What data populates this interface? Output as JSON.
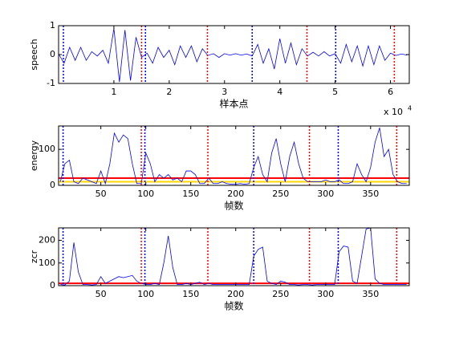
{
  "chart_data": [
    {
      "type": "line",
      "ylabel": "speech",
      "xlabel": "样本点",
      "x_exponent_base": "x 10",
      "x_exponent": "4",
      "x": [
        0,
        1000,
        2000,
        3000,
        4000,
        5000,
        6000,
        7000,
        8000,
        9000,
        10000,
        11000,
        12000,
        13000,
        14000,
        15000,
        16000,
        17000,
        18000,
        19000,
        20000,
        21000,
        22000,
        23000,
        24000,
        25000,
        26000,
        27000,
        28000,
        29000,
        30000,
        31000,
        32000,
        33000,
        34000,
        35000,
        36000,
        37000,
        38000,
        39000,
        40000,
        41000,
        42000,
        43000,
        44000,
        45000,
        46000,
        47000,
        48000,
        49000,
        50000,
        51000,
        52000,
        53000,
        54000,
        55000,
        56000,
        57000,
        58000,
        59000,
        60000,
        61000,
        62000,
        63000
      ],
      "values": [
        0.02,
        -0.3,
        0.25,
        -0.2,
        0.25,
        -0.2,
        0.1,
        -0.05,
        0.15,
        -0.3,
        0.9,
        -0.95,
        0.85,
        -0.9,
        0.6,
        -0.1,
        0.05,
        -0.3,
        0.25,
        -0.1,
        0.15,
        -0.35,
        0.3,
        -0.1,
        0.3,
        -0.25,
        0.2,
        -0.03,
        0.03,
        -0.1,
        0.03,
        -0.02,
        0.03,
        -0.02,
        0.02,
        -0.05,
        0.35,
        -0.3,
        0.2,
        -0.5,
        0.55,
        -0.3,
        0.4,
        -0.35,
        0.2,
        -0.05,
        0.08,
        -0.05,
        0.1,
        -0.05,
        0.03,
        -0.3,
        0.35,
        -0.25,
        0.3,
        -0.4,
        0.3,
        -0.35,
        0.3,
        -0.2,
        0.05,
        -0.03,
        0.02,
        -0.02
      ],
      "color": "#0000ff",
      "xlim": [
        0,
        63400
      ],
      "ylim": [
        -1,
        1
      ],
      "yticks": [
        -1,
        0,
        1
      ],
      "xticks": [
        {
          "value": 10000,
          "label": "1"
        },
        {
          "value": 20000,
          "label": "2"
        },
        {
          "value": 30000,
          "label": "3"
        },
        {
          "value": 40000,
          "label": "4"
        },
        {
          "value": 50000,
          "label": "5"
        },
        {
          "value": 60000,
          "label": "6"
        }
      ],
      "vlines": [
        {
          "value": 870,
          "color": "#0000ff"
        },
        {
          "value": 15000,
          "color": "#ff0000"
        },
        {
          "value": 15700,
          "color": "#0000ff"
        },
        {
          "value": 26900,
          "color": "#ff0000"
        },
        {
          "value": 35000,
          "color": "#0000ff"
        },
        {
          "value": 44900,
          "color": "#ff0000"
        },
        {
          "value": 50100,
          "color": "#0000ff"
        },
        {
          "value": 60700,
          "color": "#ff0000"
        }
      ]
    },
    {
      "type": "line",
      "ylabel": "energy",
      "xlabel": "帧数",
      "x": [
        5,
        10,
        15,
        20,
        25,
        30,
        35,
        40,
        45,
        50,
        55,
        60,
        65,
        70,
        75,
        80,
        85,
        90,
        95,
        100,
        105,
        110,
        115,
        120,
        125,
        130,
        135,
        140,
        145,
        150,
        155,
        160,
        165,
        170,
        175,
        180,
        185,
        190,
        195,
        200,
        205,
        210,
        215,
        220,
        225,
        230,
        235,
        240,
        245,
        250,
        255,
        260,
        265,
        270,
        275,
        280,
        285,
        290,
        295,
        300,
        305,
        310,
        315,
        320,
        325,
        330,
        335,
        340,
        345,
        350,
        355,
        360,
        365,
        370,
        375,
        380,
        385,
        390
      ],
      "values": [
        10,
        60,
        70,
        10,
        5,
        20,
        15,
        10,
        5,
        40,
        5,
        60,
        145,
        120,
        140,
        130,
        60,
        5,
        5,
        90,
        60,
        10,
        30,
        20,
        30,
        15,
        20,
        10,
        40,
        40,
        30,
        5,
        5,
        20,
        5,
        5,
        10,
        5,
        3,
        3,
        5,
        3,
        5,
        50,
        80,
        30,
        10,
        90,
        130,
        60,
        10,
        80,
        120,
        60,
        20,
        10,
        10,
        10,
        10,
        15,
        10,
        10,
        15,
        5,
        5,
        10,
        60,
        30,
        10,
        50,
        120,
        160,
        80,
        100,
        30,
        10,
        5,
        5
      ],
      "color": "#0000ff",
      "xlim": [
        3,
        393
      ],
      "ylim": [
        0,
        165
      ],
      "yticks": [
        0,
        100
      ],
      "xticks": [
        50,
        100,
        150,
        200,
        250,
        300,
        350
      ],
      "hlines": [
        {
          "value": 10,
          "color": "#ffd700"
        },
        {
          "value": 20,
          "color": "#ff0000"
        }
      ],
      "vlines": [
        {
          "value": 8,
          "color": "#0000ff"
        },
        {
          "value": 95,
          "color": "#ff0000"
        },
        {
          "value": 99,
          "color": "#0000ff"
        },
        {
          "value": 169,
          "color": "#ff0000"
        },
        {
          "value": 220,
          "color": "#0000ff"
        },
        {
          "value": 282,
          "color": "#ff0000"
        },
        {
          "value": 314,
          "color": "#0000ff"
        },
        {
          "value": 379,
          "color": "#ff0000"
        }
      ]
    },
    {
      "type": "line",
      "ylabel": "zcr",
      "xlabel": "帧数",
      "x": [
        5,
        10,
        15,
        20,
        25,
        30,
        35,
        40,
        45,
        50,
        55,
        60,
        65,
        70,
        75,
        80,
        85,
        90,
        95,
        100,
        105,
        110,
        115,
        120,
        125,
        130,
        135,
        140,
        145,
        150,
        155,
        160,
        165,
        170,
        175,
        180,
        185,
        190,
        195,
        200,
        205,
        210,
        215,
        220,
        225,
        230,
        235,
        240,
        245,
        250,
        255,
        260,
        265,
        270,
        275,
        280,
        285,
        290,
        295,
        300,
        305,
        310,
        315,
        320,
        325,
        330,
        335,
        340,
        345,
        350,
        355,
        360,
        365,
        370,
        375,
        380,
        385,
        390
      ],
      "values": [
        5,
        3,
        20,
        190,
        60,
        5,
        5,
        3,
        5,
        40,
        10,
        20,
        30,
        40,
        35,
        40,
        45,
        20,
        10,
        5,
        5,
        10,
        5,
        100,
        220,
        80,
        5,
        5,
        10,
        5,
        10,
        15,
        5,
        10,
        5,
        5,
        5,
        5,
        5,
        5,
        5,
        5,
        5,
        130,
        160,
        170,
        20,
        10,
        5,
        20,
        15,
        5,
        5,
        3,
        5,
        5,
        3,
        5,
        5,
        5,
        5,
        5,
        150,
        175,
        170,
        20,
        10,
        130,
        250,
        255,
        30,
        10,
        5,
        5,
        5,
        5,
        5,
        5
      ],
      "color": "#0000ff",
      "xlim": [
        3,
        393
      ],
      "ylim": [
        0,
        255
      ],
      "yticks": [
        0,
        100,
        200
      ],
      "xticks": [
        50,
        100,
        150,
        200,
        250,
        300,
        350
      ],
      "hlines": [
        {
          "value": 10,
          "color": "#ff0000"
        }
      ],
      "vlines": [
        {
          "value": 8,
          "color": "#0000ff"
        },
        {
          "value": 95,
          "color": "#ff0000"
        },
        {
          "value": 99,
          "color": "#0000ff"
        },
        {
          "value": 169,
          "color": "#ff0000"
        },
        {
          "value": 220,
          "color": "#0000ff"
        },
        {
          "value": 282,
          "color": "#ff0000"
        },
        {
          "value": 314,
          "color": "#0000ff"
        },
        {
          "value": 379,
          "color": "#ff0000"
        }
      ]
    }
  ]
}
